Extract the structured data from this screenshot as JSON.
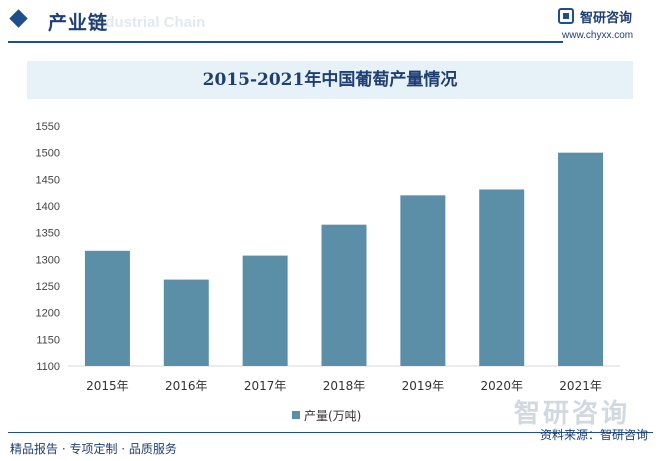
{
  "header": {
    "section_title": "产业链",
    "section_subtitle": "Industrial Chain",
    "brand_name": "智研咨询",
    "brand_url": "www.chyxx.com"
  },
  "chart_data": {
    "type": "bar",
    "title": "2015-2021年中国葡萄产量情况",
    "categories": [
      "2015年",
      "2016年",
      "2017年",
      "2018年",
      "2019年",
      "2020年",
      "2021年"
    ],
    "series": [
      {
        "name": "产量(万吨)",
        "values": [
          1316,
          1262,
          1307,
          1365,
          1420,
          1431,
          1500
        ]
      }
    ],
    "ylim": [
      1100,
      1550
    ],
    "yticks": [
      1100,
      1150,
      1200,
      1250,
      1300,
      1350,
      1400,
      1450,
      1500,
      1550
    ],
    "grid": false,
    "legend": "bottom-center",
    "bar_color": "#5b8fa8"
  },
  "footer": {
    "left_text": "精品报告 · 专项定制 · 品质服务",
    "right_text": "资料来源：智研咨询",
    "brand_watermark": "智研咨询"
  }
}
